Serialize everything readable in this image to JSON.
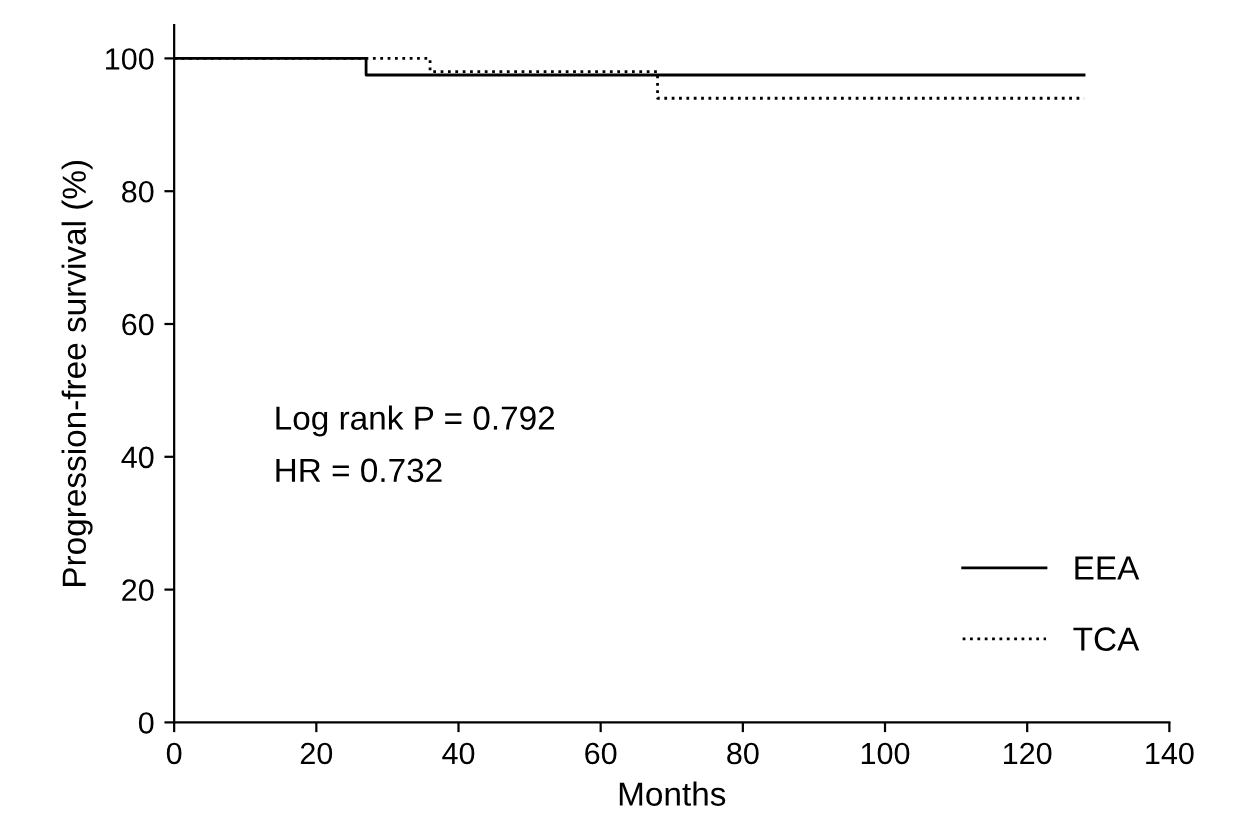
{
  "chart_data": {
    "type": "step",
    "xlabel": "Months",
    "ylabel": "Progression-free survival (%)",
    "xlim": [
      0,
      140
    ],
    "xticks": [
      0,
      20,
      40,
      60,
      80,
      100,
      120,
      140
    ],
    "ylim": [
      0,
      105
    ],
    "yticks": [
      0,
      20,
      40,
      60,
      80,
      100
    ],
    "series": [
      {
        "name": "EEA",
        "color": "#000000",
        "line_style": "solid",
        "x": [
          0,
          27,
          128
        ],
        "values": [
          100,
          97.5,
          97.5
        ]
      },
      {
        "name": "TCA",
        "color": "#000000",
        "line_style": "dotted",
        "x": [
          0,
          36,
          68,
          128
        ],
        "values": [
          100,
          98,
          94,
          94
        ]
      }
    ],
    "annotations": [
      "Log rank P = 0.792",
      "HR = 0.732"
    ],
    "legend": "bottom right",
    "grid": false
  }
}
